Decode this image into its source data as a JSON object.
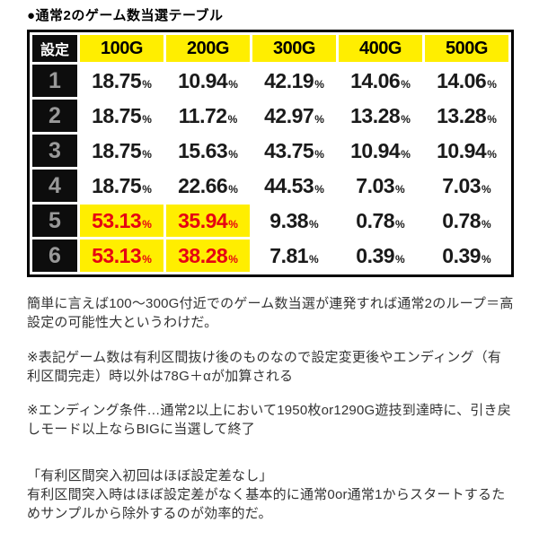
{
  "title": "●通常2のゲーム数当選テーブル",
  "table": {
    "header": {
      "setting": "設定",
      "cols": [
        "100G",
        "200G",
        "300G",
        "400G",
        "500G"
      ]
    },
    "percent": "%",
    "rows": [
      {
        "setting": "1",
        "values": [
          "18.75",
          "10.94",
          "42.19",
          "14.06",
          "14.06"
        ]
      },
      {
        "setting": "2",
        "values": [
          "18.75",
          "11.72",
          "42.97",
          "13.28",
          "13.28"
        ]
      },
      {
        "setting": "3",
        "values": [
          "18.75",
          "15.63",
          "43.75",
          "10.94",
          "10.94"
        ]
      },
      {
        "setting": "4",
        "values": [
          "18.75",
          "22.66",
          "44.53",
          "7.03",
          "7.03"
        ]
      },
      {
        "setting": "5",
        "values": [
          "53.13",
          "35.94",
          "9.38",
          "0.78",
          "0.78"
        ]
      },
      {
        "setting": "6",
        "values": [
          "53.13",
          "38.28",
          "7.81",
          "0.39",
          "0.39"
        ]
      }
    ],
    "highlighted_cells_note": "rows 5 and 6, columns 100G and 200G are yellow with red text"
  },
  "colors": {
    "header_yellow": "#ffee00",
    "highlight_yellow": "#ffee00",
    "highlight_red": "#e60012",
    "cell_black": "#0d0d0d"
  },
  "paragraphs": [
    "簡単に言えば100〜300G付近でのゲーム数当選が連発すれば通常2のループ＝高設定の可能性大というわけだ。",
    "※表記ゲーム数は有利区間抜け後のものなので設定変更後やエンディング（有利区間完走）時以外は78G＋αが加算される",
    "※エンディング条件…通常2以上において1950枚or1290G遊技到達時に、引き戻しモード以上ならBIGに当選して終了",
    "「有利区間突入初回はほぼ設定差なし」\n有利区間突入時はほぼ設定差がなく基本的に通常0or通常1からスタートするためサンプルから除外するのが効率的だ。"
  ]
}
